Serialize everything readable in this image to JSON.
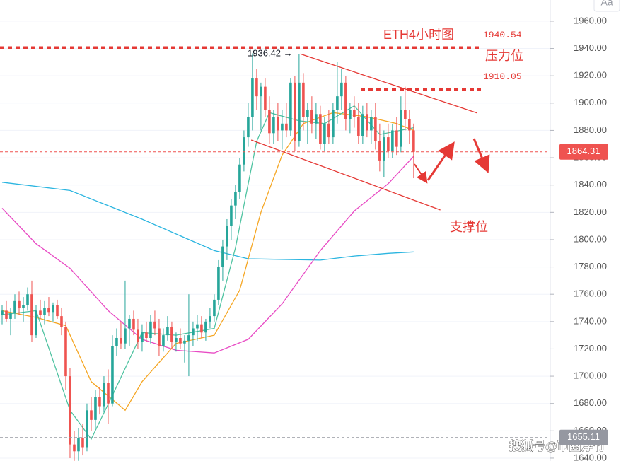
{
  "chart_data": {
    "type": "candlestick",
    "title": "ETH4小时图",
    "up_color": "#26a69a",
    "down_color": "#ef5350",
    "xlim": [
      -0.5,
      129.2
    ],
    "ylim": [
      1637.9,
      1975.5
    ],
    "yticks": [
      {
        "value": 1640,
        "label": "1640.00"
      },
      {
        "value": 1660,
        "label": "1660.00"
      },
      {
        "value": 1680,
        "label": "1680.00"
      },
      {
        "value": 1700,
        "label": "1700.00"
      },
      {
        "value": 1720,
        "label": "1720.00"
      },
      {
        "value": 1740,
        "label": "1740.00"
      },
      {
        "value": 1760,
        "label": "1760.00"
      },
      {
        "value": 1780,
        "label": "1780.00"
      },
      {
        "value": 1800,
        "label": "1800.00"
      },
      {
        "value": 1820,
        "label": "1820.00"
      },
      {
        "value": 1840,
        "label": "1840.00"
      },
      {
        "value": 1860,
        "label": "1860.00"
      },
      {
        "value": 1880,
        "label": "1880.00"
      },
      {
        "value": 1900,
        "label": "1900.00"
      },
      {
        "value": 1920,
        "label": "1920.00"
      },
      {
        "value": 1940,
        "label": "1940.00"
      },
      {
        "value": 1960,
        "label": "1960.00"
      }
    ],
    "grid": true,
    "ohlc": [
      [
        1745,
        1752,
        1738,
        1748
      ],
      [
        1748,
        1755,
        1740,
        1742
      ],
      [
        1742,
        1750,
        1730,
        1746
      ],
      [
        1746,
        1760,
        1742,
        1755
      ],
      [
        1755,
        1762,
        1745,
        1750
      ],
      [
        1750,
        1758,
        1740,
        1752
      ],
      [
        1752,
        1765,
        1748,
        1760
      ],
      [
        1760,
        1770,
        1725,
        1730
      ],
      [
        1730,
        1752,
        1728,
        1748
      ],
      [
        1748,
        1756,
        1742,
        1745
      ],
      [
        1745,
        1755,
        1738,
        1750
      ],
      [
        1750,
        1758,
        1744,
        1747
      ],
      [
        1747,
        1754,
        1740,
        1752
      ],
      [
        1752,
        1756,
        1742,
        1744
      ],
      [
        1744,
        1750,
        1730,
        1736
      ],
      [
        1736,
        1740,
        1690,
        1700
      ],
      [
        1700,
        1706,
        1640,
        1650
      ],
      [
        1650,
        1660,
        1638,
        1645
      ],
      [
        1645,
        1662,
        1638,
        1655
      ],
      [
        1655,
        1665,
        1642,
        1648
      ],
      [
        1648,
        1680,
        1645,
        1675
      ],
      [
        1675,
        1685,
        1660,
        1668
      ],
      [
        1668,
        1690,
        1662,
        1685
      ],
      [
        1685,
        1692,
        1672,
        1678
      ],
      [
        1678,
        1700,
        1674,
        1695
      ],
      [
        1695,
        1705,
        1665,
        1680
      ],
      [
        1680,
        1730,
        1678,
        1722
      ],
      [
        1722,
        1735,
        1715,
        1728
      ],
      [
        1728,
        1740,
        1720,
        1724
      ],
      [
        1724,
        1770,
        1720,
        1735
      ],
      [
        1735,
        1745,
        1722,
        1742
      ],
      [
        1742,
        1748,
        1730,
        1734
      ],
      [
        1734,
        1742,
        1720,
        1725
      ],
      [
        1725,
        1738,
        1718,
        1732
      ],
      [
        1732,
        1740,
        1725,
        1728
      ],
      [
        1728,
        1745,
        1724,
        1740
      ],
      [
        1740,
        1748,
        1730,
        1735
      ],
      [
        1735,
        1742,
        1715,
        1722
      ],
      [
        1722,
        1735,
        1718,
        1730
      ],
      [
        1730,
        1744,
        1726,
        1736
      ],
      [
        1736,
        1740,
        1720,
        1725
      ],
      [
        1725,
        1732,
        1718,
        1728
      ],
      [
        1728,
        1735,
        1720,
        1724
      ],
      [
        1724,
        1730,
        1710,
        1726
      ],
      [
        1726,
        1760,
        1700,
        1730
      ],
      [
        1730,
        1740,
        1722,
        1735
      ],
      [
        1735,
        1745,
        1726,
        1738
      ],
      [
        1738,
        1744,
        1728,
        1732
      ],
      [
        1732,
        1742,
        1726,
        1740
      ],
      [
        1740,
        1750,
        1735,
        1744
      ],
      [
        1744,
        1760,
        1740,
        1756
      ],
      [
        1756,
        1785,
        1752,
        1780
      ],
      [
        1780,
        1800,
        1770,
        1795
      ],
      [
        1795,
        1815,
        1785,
        1810
      ],
      [
        1810,
        1830,
        1800,
        1825
      ],
      [
        1825,
        1840,
        1815,
        1835
      ],
      [
        1835,
        1860,
        1830,
        1855
      ],
      [
        1855,
        1880,
        1850,
        1875
      ],
      [
        1875,
        1900,
        1868,
        1890
      ],
      [
        1890,
        1936.42,
        1880,
        1918
      ],
      [
        1918,
        1925,
        1895,
        1905
      ],
      [
        1905,
        1915,
        1880,
        1912
      ],
      [
        1912,
        1918,
        1890,
        1895
      ],
      [
        1895,
        1905,
        1870,
        1878
      ],
      [
        1878,
        1895,
        1870,
        1890
      ],
      [
        1890,
        1900,
        1872,
        1880
      ],
      [
        1880,
        1895,
        1866,
        1885
      ],
      [
        1885,
        1900,
        1875,
        1880
      ],
      [
        1880,
        1918,
        1876,
        1915
      ],
      [
        1915,
        1920,
        1865,
        1872
      ],
      [
        1872,
        1936,
        1868,
        1915
      ],
      [
        1915,
        1922,
        1880,
        1890
      ],
      [
        1890,
        1900,
        1870,
        1895
      ],
      [
        1895,
        1905,
        1878,
        1885
      ],
      [
        1885,
        1900,
        1874,
        1892
      ],
      [
        1892,
        1898,
        1866,
        1870
      ],
      [
        1870,
        1890,
        1865,
        1885
      ],
      [
        1885,
        1895,
        1870,
        1875
      ],
      [
        1875,
        1900,
        1870,
        1895
      ],
      [
        1895,
        1930,
        1885,
        1905
      ],
      [
        1905,
        1925,
        1895,
        1915
      ],
      [
        1915,
        1920,
        1880,
        1888
      ],
      [
        1888,
        1900,
        1878,
        1895
      ],
      [
        1895,
        1905,
        1882,
        1890
      ],
      [
        1890,
        1900,
        1870,
        1876
      ],
      [
        1876,
        1898,
        1870,
        1892
      ],
      [
        1892,
        1900,
        1875,
        1880
      ],
      [
        1880,
        1895,
        1870,
        1890
      ],
      [
        1890,
        1900,
        1866,
        1872
      ],
      [
        1872,
        1885,
        1850,
        1858
      ],
      [
        1858,
        1880,
        1846,
        1875
      ],
      [
        1875,
        1885,
        1860,
        1865
      ],
      [
        1865,
        1885,
        1860,
        1880
      ],
      [
        1880,
        1890,
        1862,
        1868
      ],
      [
        1868,
        1905,
        1864,
        1895
      ],
      [
        1895,
        1912,
        1880,
        1888
      ],
      [
        1888,
        1895,
        1870,
        1880
      ],
      [
        1880,
        1885,
        1845,
        1864.31
      ]
    ],
    "lines": [
      {
        "color": "#2bb5e0",
        "x": [
          0,
          16,
          33,
          50,
          58,
          75,
          83,
          91,
          97
        ],
        "values": [
          1842,
          1836,
          1815,
          1792,
          1786,
          1785,
          1788,
          1790,
          1791
        ]
      },
      {
        "color": "#e84bc4",
        "x": [
          0,
          8,
          16,
          25,
          33,
          41,
          50,
          58,
          66,
          75,
          83,
          91,
          97
        ],
        "values": [
          1823,
          1797,
          1779,
          1748,
          1727,
          1719,
          1717,
          1727,
          1753,
          1792,
          1821,
          1841,
          1861
        ]
      },
      {
        "color": "#f5a623",
        "x": [
          0,
          8,
          15,
          21,
          29,
          33,
          41,
          50,
          56,
          61,
          66,
          71,
          78,
          86,
          93,
          97
        ],
        "values": [
          1748,
          1743,
          1737,
          1696,
          1675,
          1696,
          1724,
          1730,
          1763,
          1820,
          1862,
          1885,
          1893,
          1890,
          1885,
          1880
        ]
      },
      {
        "color": "#4fc3a1",
        "x": [
          0,
          8,
          16,
          21,
          26,
          33,
          41,
          50,
          55,
          60,
          63,
          70,
          76,
          83,
          89,
          97
        ],
        "values": [
          1745,
          1748,
          1675,
          1654,
          1686,
          1732,
          1730,
          1735,
          1794,
          1872,
          1893,
          1887,
          1885,
          1898,
          1877,
          1882
        ]
      }
    ],
    "trendlines": [
      {
        "x": [
          70.3,
          112
        ],
        "values": [
          1936,
          1892.7
        ]
      },
      {
        "x": [
          58.7,
          103.3
        ],
        "values": [
          1873,
          1821.7
        ]
      }
    ],
    "levels": [
      {
        "value": 1940.54,
        "label": "1940.54"
      },
      {
        "value": 1910.05,
        "label": "1910.05"
      }
    ],
    "price_labels": [
      {
        "value": 1864.31,
        "label": "1864.31",
        "color": "#ef5350"
      },
      {
        "value": 1655.11,
        "label": "1655.11",
        "color": "#9598a1"
      }
    ],
    "annotations": {
      "resistance": "压力位",
      "support": "支撑位",
      "high": "1936.42 →"
    },
    "watermark": "搜狐号@币圈浮竹",
    "font_button": "Aa"
  }
}
